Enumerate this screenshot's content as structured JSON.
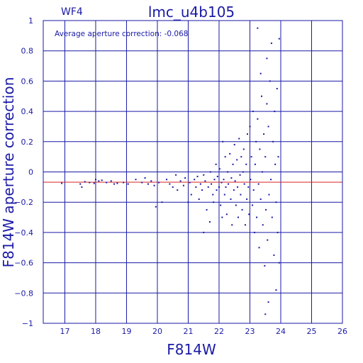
{
  "chart_data": {
    "type": "scatter",
    "title": "lmc_u4b105",
    "chip_label": "WF4",
    "annotation": "Average aperture correction: -0.068",
    "xlabel": "F814W",
    "ylabel": "F814W aperture correction",
    "xlim": [
      16.3,
      26
    ],
    "ylim": [
      -1,
      1
    ],
    "x_ticks": [
      17,
      18,
      19,
      20,
      21,
      22,
      23,
      24,
      25,
      26
    ],
    "x_tick_labels": [
      "17",
      "18",
      "19",
      "20",
      "21",
      "22",
      "23",
      "24",
      "25",
      "26"
    ],
    "y_ticks": [
      -1,
      -0.8,
      -0.6,
      -0.4,
      -0.2,
      0,
      0.2,
      0.4,
      0.6,
      0.8,
      1
    ],
    "y_tick_labels": [
      "−1",
      "−0.8",
      "−0.6",
      "−0.4",
      "−0.2",
      "0",
      "0.2",
      "0.4",
      "0.6",
      "0.8",
      "1"
    ],
    "grid": true,
    "reference_line": {
      "y": -0.068,
      "color": "#d42020"
    },
    "colors": {
      "axes": "#1a1aa6",
      "points": "#1a1aa6"
    },
    "points": [
      [
        16.9,
        -0.075
      ],
      [
        17.5,
        -0.08
      ],
      [
        17.55,
        -0.1
      ],
      [
        17.65,
        -0.065
      ],
      [
        17.8,
        -0.07
      ],
      [
        17.95,
        -0.075
      ],
      [
        18.0,
        -0.05
      ],
      [
        18.1,
        -0.06
      ],
      [
        18.2,
        -0.055
      ],
      [
        18.35,
        -0.07
      ],
      [
        18.5,
        -0.06
      ],
      [
        18.6,
        -0.08
      ],
      [
        18.7,
        -0.075
      ],
      [
        18.9,
        -0.07
      ],
      [
        19.05,
        -0.08
      ],
      [
        19.3,
        -0.05
      ],
      [
        19.5,
        -0.07
      ],
      [
        19.6,
        -0.04
      ],
      [
        19.7,
        -0.08
      ],
      [
        19.8,
        -0.06
      ],
      [
        19.9,
        -0.09
      ],
      [
        19.95,
        -0.23
      ],
      [
        20.05,
        -0.07
      ],
      [
        20.15,
        -0.2
      ],
      [
        20.3,
        -0.05
      ],
      [
        20.4,
        -0.08
      ],
      [
        20.5,
        -0.1
      ],
      [
        20.6,
        -0.02
      ],
      [
        20.65,
        -0.12
      ],
      [
        20.75,
        -0.06
      ],
      [
        20.85,
        -0.09
      ],
      [
        20.9,
        -0.04
      ],
      [
        21.0,
        -0.2
      ],
      [
        21.05,
        -0.07
      ],
      [
        21.1,
        -0.15
      ],
      [
        21.2,
        -0.05
      ],
      [
        21.25,
        -0.1
      ],
      [
        21.3,
        -0.03
      ],
      [
        21.35,
        -0.18
      ],
      [
        21.4,
        -0.08
      ],
      [
        21.45,
        -0.12
      ],
      [
        21.5,
        -0.02
      ],
      [
        21.5,
        -0.4
      ],
      [
        21.55,
        -0.06
      ],
      [
        21.6,
        -0.25
      ],
      [
        21.65,
        -0.1
      ],
      [
        21.7,
        -0.33
      ],
      [
        21.72,
        0.0
      ],
      [
        21.75,
        -0.08
      ],
      [
        21.8,
        -0.15
      ],
      [
        21.82,
        -0.2
      ],
      [
        21.85,
        -0.05
      ],
      [
        21.9,
        0.05
      ],
      [
        21.92,
        -0.12
      ],
      [
        21.95,
        -0.03
      ],
      [
        22.0,
        -0.1
      ],
      [
        22.02,
        0.02
      ],
      [
        22.05,
        -0.22
      ],
      [
        22.08,
        -0.07
      ],
      [
        22.1,
        -0.3
      ],
      [
        22.12,
        0.2
      ],
      [
        22.15,
        -0.05
      ],
      [
        22.18,
        -0.15
      ],
      [
        22.2,
        0.1
      ],
      [
        22.22,
        -0.1
      ],
      [
        22.25,
        -0.28
      ],
      [
        22.28,
        0.0
      ],
      [
        22.3,
        -0.08
      ],
      [
        22.35,
        0.12
      ],
      [
        22.38,
        -0.18
      ],
      [
        22.4,
        -0.04
      ],
      [
        22.42,
        -0.35
      ],
      [
        22.45,
        0.05
      ],
      [
        22.48,
        -0.12
      ],
      [
        22.5,
        0.18
      ],
      [
        22.52,
        -0.06
      ],
      [
        22.55,
        -0.22
      ],
      [
        22.58,
        0.08
      ],
      [
        22.6,
        -0.1
      ],
      [
        22.62,
        -0.3
      ],
      [
        22.65,
        0.22
      ],
      [
        22.68,
        -0.02
      ],
      [
        22.7,
        -0.15
      ],
      [
        22.72,
        0.1
      ],
      [
        22.75,
        -0.25
      ],
      [
        22.78,
        0.0
      ],
      [
        22.8,
        0.15
      ],
      [
        22.82,
        -0.08
      ],
      [
        22.85,
        -0.35
      ],
      [
        22.88,
        0.05
      ],
      [
        22.9,
        -0.18
      ],
      [
        22.92,
        0.25
      ],
      [
        22.95,
        -0.1
      ],
      [
        22.97,
        -0.28
      ],
      [
        23.0,
        0.3
      ],
      [
        23.02,
        -0.05
      ],
      [
        23.05,
        0.1
      ],
      [
        23.08,
        -0.22
      ],
      [
        23.1,
        0.4
      ],
      [
        23.12,
        -0.12
      ],
      [
        23.15,
        -0.4
      ],
      [
        23.17,
        0.05
      ],
      [
        23.2,
        0.2
      ],
      [
        23.22,
        -0.3
      ],
      [
        23.25,
        0.35
      ],
      [
        23.28,
        -0.08
      ],
      [
        23.3,
        -0.5
      ],
      [
        23.32,
        0.15
      ],
      [
        23.35,
        -0.18
      ],
      [
        23.38,
        0.5
      ],
      [
        23.4,
        0.0
      ],
      [
        23.42,
        -0.35
      ],
      [
        23.45,
        0.25
      ],
      [
        23.48,
        -0.62
      ],
      [
        23.5,
        0.1
      ],
      [
        23.52,
        -0.25
      ],
      [
        23.55,
        0.45
      ],
      [
        23.57,
        -0.45
      ],
      [
        23.6,
        0.3
      ],
      [
        23.62,
        -0.15
      ],
      [
        23.65,
        0.6
      ],
      [
        23.68,
        -0.05
      ],
      [
        23.7,
        0.85
      ],
      [
        23.72,
        -0.3
      ],
      [
        23.75,
        0.2
      ],
      [
        23.78,
        -0.55
      ],
      [
        23.8,
        0.4
      ],
      [
        23.82,
        0.05
      ],
      [
        23.85,
        -0.2
      ],
      [
        23.88,
        0.55
      ],
      [
        23.9,
        -0.4
      ],
      [
        23.92,
        0.1
      ],
      [
        23.95,
        -0.6
      ],
      [
        23.95,
        0.88
      ],
      [
        23.5,
        -0.94
      ],
      [
        23.6,
        -0.86
      ],
      [
        23.85,
        -0.78
      ],
      [
        23.25,
        0.95
      ],
      [
        23.55,
        0.75
      ],
      [
        23.35,
        0.65
      ]
    ]
  }
}
